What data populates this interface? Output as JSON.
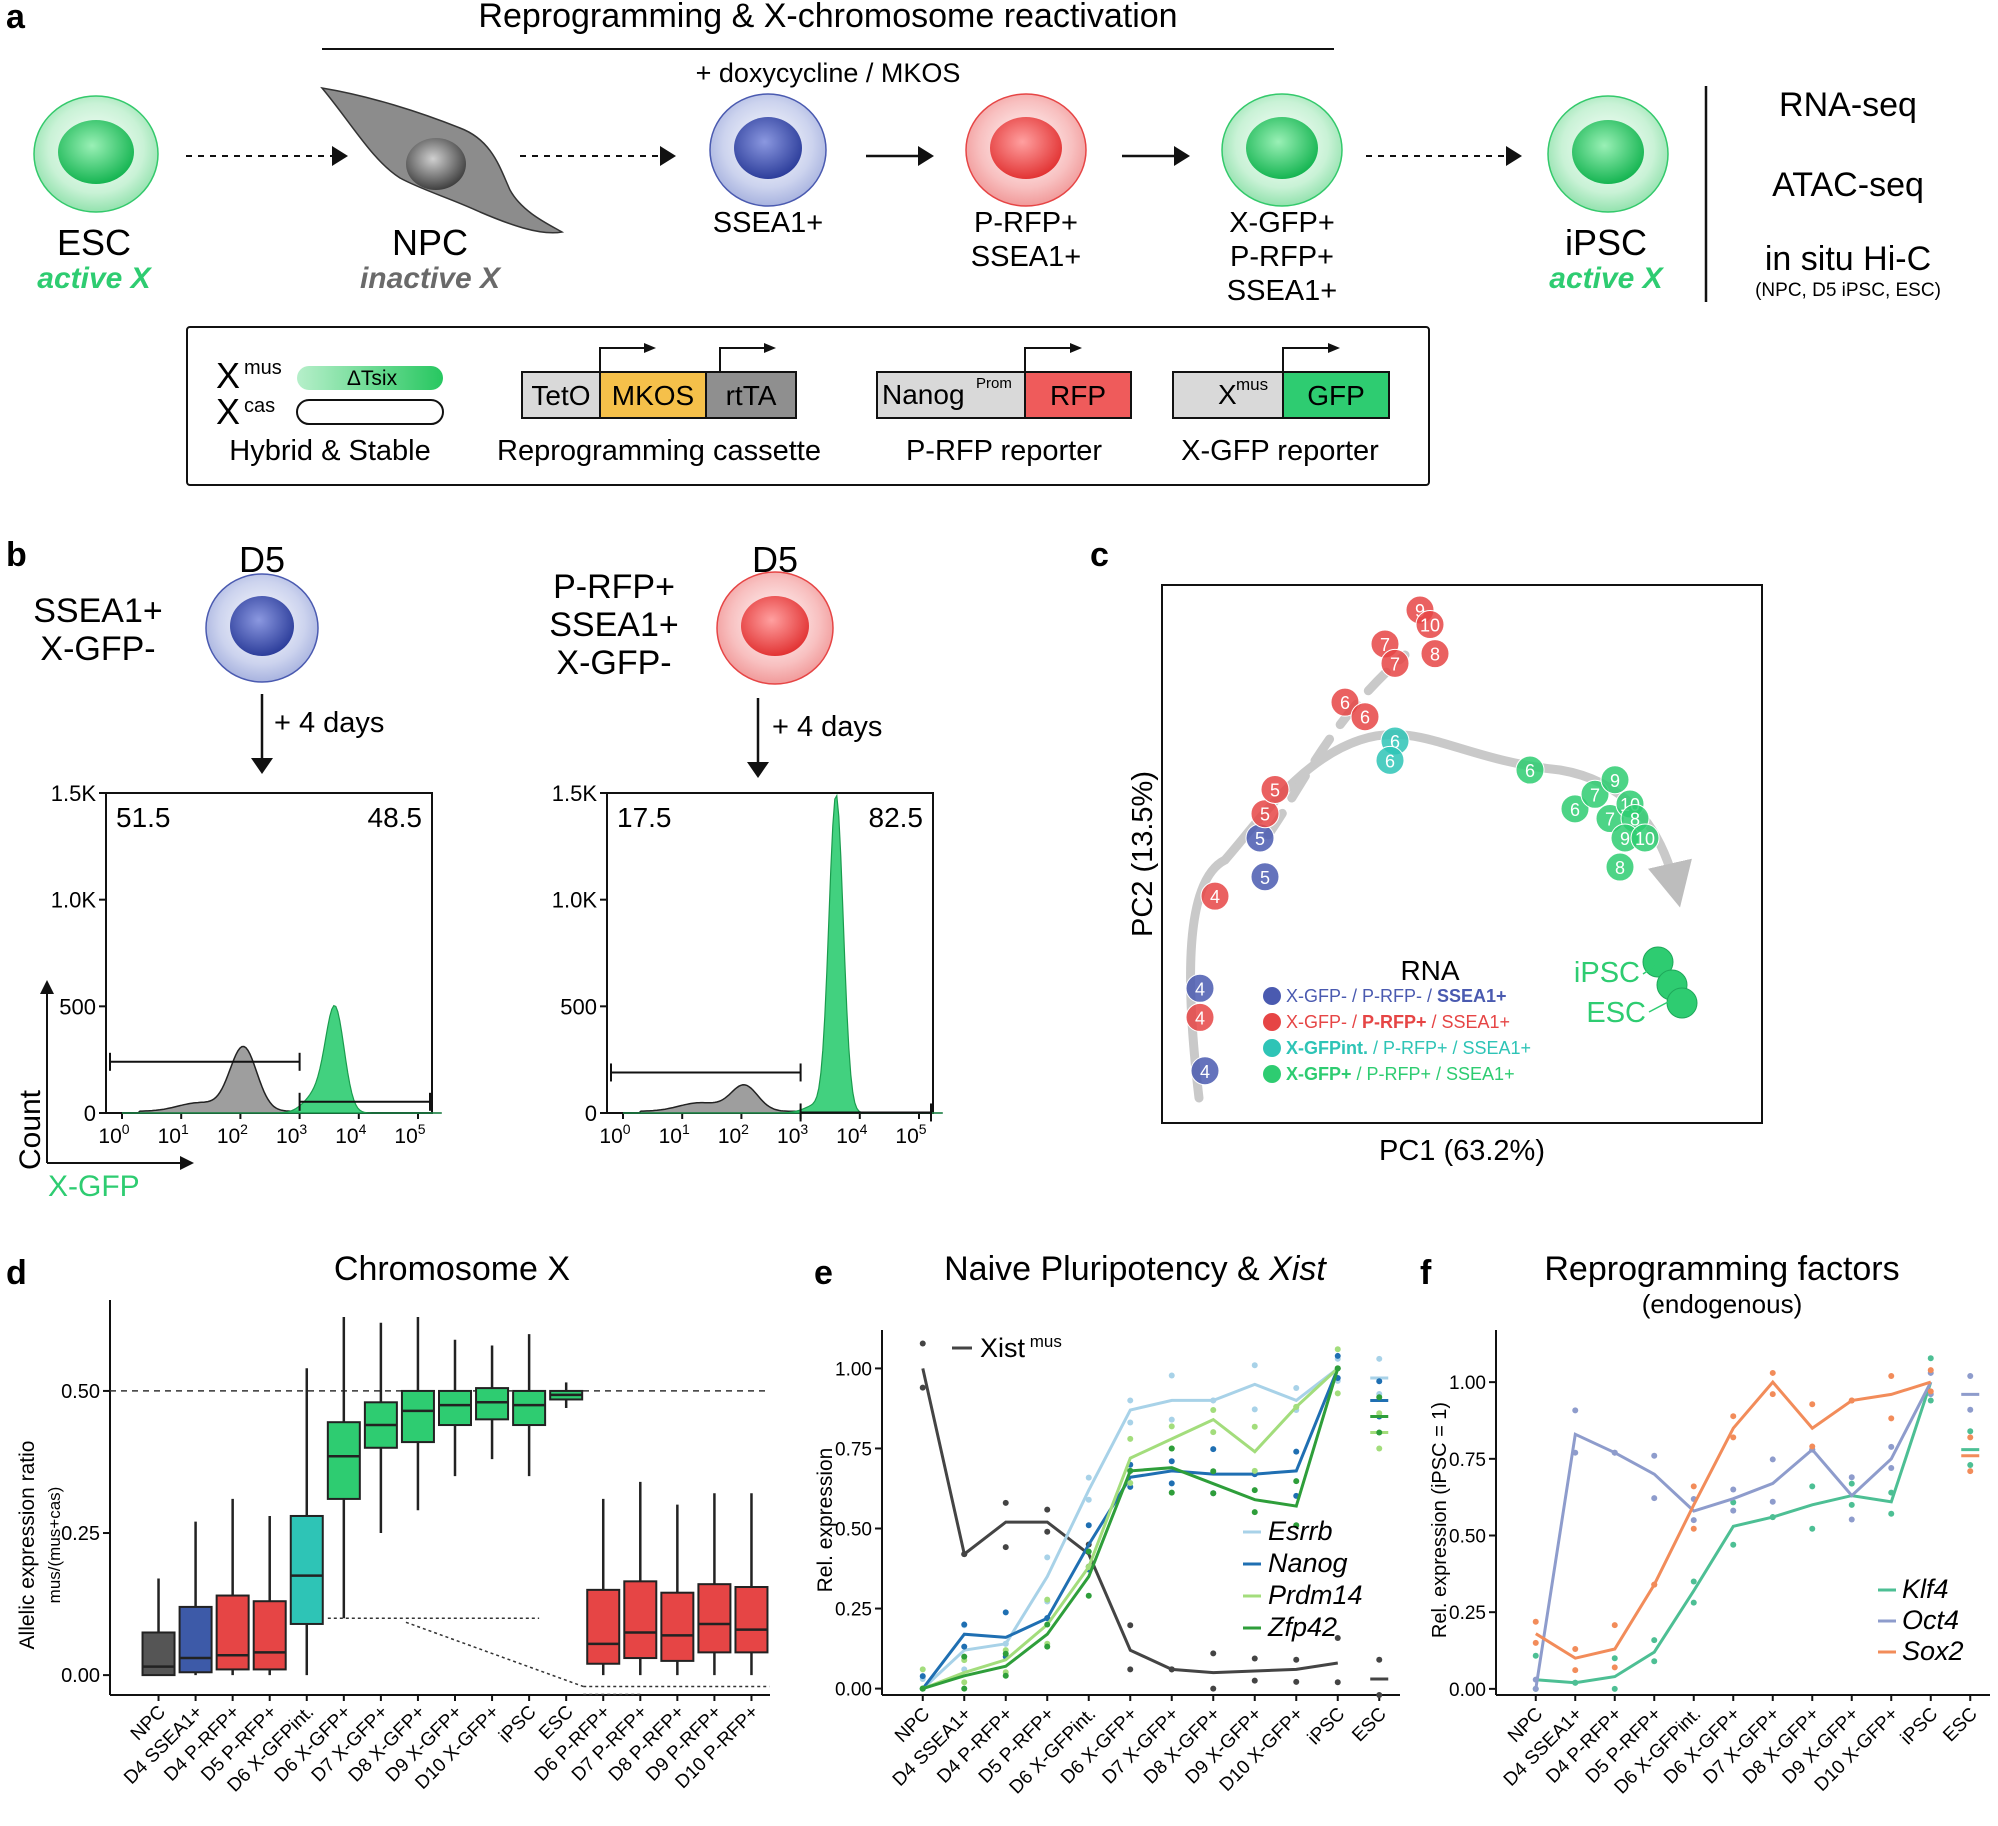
{
  "panel_a": {
    "label": "a",
    "banner": "Reprogramming & X-chromosome reactivation",
    "dox": "+ doxycycline / MKOS",
    "cells": {
      "esc": {
        "name": "ESC",
        "sub": "active X"
      },
      "npc": {
        "name": "NPC",
        "sub": "inactive X"
      },
      "ssea": {
        "name": "SSEA1+"
      },
      "prfp": {
        "l1": "P-RFP+",
        "l2": "SSEA1+"
      },
      "xgfp": {
        "l1": "X-GFP+",
        "l2": "P-RFP+",
        "l3": "SSEA1+"
      },
      "ipsc": {
        "name": "iPSC",
        "sub": "active X"
      }
    },
    "assays": {
      "rna": "RNA-seq",
      "atac": "ATAC-seq",
      "hic": "in situ Hi-C",
      "hic_note": "(NPC, D5 iPSC, ESC)"
    },
    "constructs": {
      "hybrid": {
        "x": "X",
        "mus": "mus",
        "cas": "cas",
        "delta": "ΔTsix",
        "caption": "Hybrid & Stable"
      },
      "cassette": {
        "teto": "TetO",
        "mkos": "MKOS",
        "rtta": "rtTA",
        "caption": "Reprogramming cassette"
      },
      "prfp": {
        "nanog": "Nanog",
        "prom": "Prom",
        "rfp": "RFP",
        "caption": "P-RFP reporter"
      },
      "xgfp": {
        "x": "X",
        "mus": "mus",
        "gfp": "GFP",
        "caption": "X-GFP reporter"
      }
    },
    "colors": {
      "green": "#2ecc71",
      "blue": "#4a5ab0",
      "red": "#e64545",
      "gray": "#7a7a7a",
      "mkos": "#f5c04a"
    }
  },
  "panel_b": {
    "label": "b",
    "left": {
      "day": "D5",
      "l1": "SSEA1+",
      "l2": "X-GFP-",
      "arrow": "+ 4 days",
      "neg": "51.5",
      "pos": "48.5"
    },
    "right": {
      "day": "D5",
      "l1": "P-RFP+",
      "l2": "SSEA1+",
      "l3": "X-GFP-",
      "arrow": "+ 4 days",
      "neg": "17.5",
      "pos": "82.5"
    },
    "yticks": [
      "1.5K",
      "1.0K",
      "500",
      "0"
    ],
    "xticks": [
      {
        "b": "10",
        "e": "0"
      },
      {
        "b": "10",
        "e": "1"
      },
      {
        "b": "10",
        "e": "2"
      },
      {
        "b": "10",
        "e": "3"
      },
      {
        "b": "10",
        "e": "4"
      },
      {
        "b": "10",
        "e": "5"
      }
    ],
    "ylabel": "Count",
    "xlabel": "X-GFP"
  },
  "panel_c": {
    "label": "c",
    "xlabel": "PC1 (63.2%)",
    "ylabel": "PC2 (13.5%)",
    "legend_title": "RNA",
    "legend": [
      {
        "a": "X-GFP- / P-RFP- / ",
        "b": "SSEA1+",
        "color": "#4a5ab0"
      },
      {
        "a": "X-GFP- / ",
        "b": "P-RFP+",
        "c": " / SSEA1+",
        "color": "#e64545"
      },
      {
        "a": "X-GFPint.",
        "b": " / P-RFP+ / SSEA1+",
        "color": "#2ec4b6"
      },
      {
        "a": "X-GFP+",
        "b": " / P-RFP+ / SSEA1+",
        "color": "#2ecc71"
      }
    ],
    "ipsc": "iPSC",
    "esc": "ESC",
    "points": [
      {
        "d": "4",
        "g": "b",
        "x": 0.05,
        "y": 0.05
      },
      {
        "d": "4",
        "g": "r",
        "x": 0.04,
        "y": 0.16
      },
      {
        "d": "4",
        "g": "b",
        "x": 0.04,
        "y": 0.22
      },
      {
        "d": "4",
        "g": "r",
        "x": 0.07,
        "y": 0.41
      },
      {
        "d": "5",
        "g": "b",
        "x": 0.17,
        "y": 0.45
      },
      {
        "d": "5",
        "g": "b",
        "x": 0.16,
        "y": 0.53
      },
      {
        "d": "5",
        "g": "r",
        "x": 0.17,
        "y": 0.58
      },
      {
        "d": "5",
        "g": "r",
        "x": 0.19,
        "y": 0.63
      },
      {
        "d": "6",
        "g": "r",
        "x": 0.33,
        "y": 0.81
      },
      {
        "d": "6",
        "g": "r",
        "x": 0.37,
        "y": 0.78
      },
      {
        "d": "7",
        "g": "r",
        "x": 0.41,
        "y": 0.93
      },
      {
        "d": "7",
        "g": "r",
        "x": 0.43,
        "y": 0.89
      },
      {
        "d": "8",
        "g": "r",
        "x": 0.51,
        "y": 0.91
      },
      {
        "d": "9",
        "g": "r",
        "x": 0.48,
        "y": 1.0
      },
      {
        "d": "10",
        "g": "r",
        "x": 0.5,
        "y": 0.97
      },
      {
        "d": "6",
        "g": "c",
        "x": 0.43,
        "y": 0.73
      },
      {
        "d": "6",
        "g": "c",
        "x": 0.42,
        "y": 0.69
      },
      {
        "d": "6",
        "g": "g",
        "x": 0.7,
        "y": 0.67
      },
      {
        "d": "6",
        "g": "g",
        "x": 0.79,
        "y": 0.59
      },
      {
        "d": "7",
        "g": "g",
        "x": 0.83,
        "y": 0.62
      },
      {
        "d": "7",
        "g": "g",
        "x": 0.86,
        "y": 0.57
      },
      {
        "d": "9",
        "g": "g",
        "x": 0.87,
        "y": 0.65
      },
      {
        "d": "10",
        "g": "g",
        "x": 0.9,
        "y": 0.6
      },
      {
        "d": "8",
        "g": "g",
        "x": 0.91,
        "y": 0.57
      },
      {
        "d": "9",
        "g": "g",
        "x": 0.89,
        "y": 0.53
      },
      {
        "d": "10",
        "g": "g",
        "x": 0.93,
        "y": 0.53
      },
      {
        "d": "8",
        "g": "g",
        "x": 0.88,
        "y": 0.47
      }
    ]
  },
  "panel_d": {
    "label": "d",
    "title": "Chromosome X",
    "ylabel": "Allelic expression ratio",
    "ylabel2": "mus/(mus+cas)",
    "yticks": [
      "0.00",
      "0.25",
      "0.50"
    ],
    "categories": [
      "NPC",
      "D4 SSEA1+",
      "D4 P-RFP+",
      "D5 P-RFP+",
      "D6 X-GFPint.",
      "D6 X-GFP+",
      "D7 X-GFP+",
      "D8 X-GFP+",
      "D9 X-GFP+",
      "D10 X-GFP+",
      "iPSC",
      "ESC",
      "D6 P-RFP+",
      "D7 P-RFP+",
      "D8 P-RFP+",
      "D9 P-RFP+",
      "D10 P-RFP+"
    ],
    "boxes": [
      {
        "c": "#555555",
        "wl": 0.0,
        "q1": 0.0,
        "med": 0.015,
        "q3": 0.075,
        "wh": 0.17
      },
      {
        "c": "#3d5aa8",
        "wl": 0.0,
        "q1": 0.005,
        "med": 0.03,
        "q3": 0.12,
        "wh": 0.27
      },
      {
        "c": "#e64545",
        "wl": 0.0,
        "q1": 0.01,
        "med": 0.035,
        "q3": 0.14,
        "wh": 0.31
      },
      {
        "c": "#e64545",
        "wl": 0.0,
        "q1": 0.01,
        "med": 0.04,
        "q3": 0.13,
        "wh": 0.28
      },
      {
        "c": "#2ec4b6",
        "wl": 0.0,
        "q1": 0.09,
        "med": 0.175,
        "q3": 0.28,
        "wh": 0.54
      },
      {
        "c": "#2ecc71",
        "wl": 0.1,
        "q1": 0.31,
        "med": 0.385,
        "q3": 0.445,
        "wh": 0.63
      },
      {
        "c": "#2ecc71",
        "wl": 0.25,
        "q1": 0.4,
        "med": 0.44,
        "q3": 0.48,
        "wh": 0.62
      },
      {
        "c": "#2ecc71",
        "wl": 0.29,
        "q1": 0.41,
        "med": 0.465,
        "q3": 0.5,
        "wh": 0.63
      },
      {
        "c": "#2ecc71",
        "wl": 0.35,
        "q1": 0.44,
        "med": 0.475,
        "q3": 0.5,
        "wh": 0.59
      },
      {
        "c": "#2ecc71",
        "wl": 0.38,
        "q1": 0.45,
        "med": 0.48,
        "q3": 0.505,
        "wh": 0.58
      },
      {
        "c": "#2ecc71",
        "wl": 0.35,
        "q1": 0.44,
        "med": 0.475,
        "q3": 0.5,
        "wh": 0.6
      },
      {
        "c": "#2ecc71",
        "wl": 0.47,
        "q1": 0.485,
        "med": 0.493,
        "q3": 0.5,
        "wh": 0.515
      },
      {
        "c": "#e64545",
        "wl": 0.0,
        "q1": 0.02,
        "med": 0.055,
        "q3": 0.15,
        "wh": 0.31
      },
      {
        "c": "#e64545",
        "wl": 0.0,
        "q1": 0.03,
        "med": 0.075,
        "q3": 0.165,
        "wh": 0.34
      },
      {
        "c": "#e64545",
        "wl": 0.0,
        "q1": 0.025,
        "med": 0.07,
        "q3": 0.145,
        "wh": 0.3
      },
      {
        "c": "#e64545",
        "wl": 0.0,
        "q1": 0.04,
        "med": 0.09,
        "q3": 0.16,
        "wh": 0.32
      },
      {
        "c": "#e64545",
        "wl": 0.0,
        "q1": 0.04,
        "med": 0.08,
        "q3": 0.155,
        "wh": 0.32
      }
    ]
  },
  "panel_e": {
    "label": "e",
    "title": "Naive Pluripotency & ",
    "title_it": "Xist",
    "ylabel": "Rel. expression",
    "yticks": [
      "0.00",
      "0.25",
      "0.50",
      "0.75",
      "1.00"
    ],
    "xist_label": "Xist",
    "xist_sup": "mus",
    "categories": [
      "NPC",
      "D4 SSEA1+",
      "D4 P-RFP+",
      "D5 P-RFP+",
      "D6 X-GFPint.",
      "D6 X-GFP+",
      "D7 X-GFP+",
      "D8 X-GFP+",
      "D9 X-GFP+",
      "D10 X-GFP+",
      "iPSC",
      "ESC"
    ],
    "series": [
      {
        "name": "Xist",
        "color": "#444444",
        "values": [
          1.0,
          0.42,
          0.52,
          0.52,
          0.42,
          0.12,
          0.06,
          0.05,
          0.055,
          0.06,
          0.08
        ],
        "esc": 0.03
      },
      {
        "name": "Esrrb",
        "color": "#a8d2e8",
        "values": [
          0.0,
          0.12,
          0.14,
          0.35,
          0.62,
          0.87,
          0.9,
          0.9,
          0.95,
          0.9,
          1.0
        ],
        "esc": 0.97
      },
      {
        "name": "Nanog",
        "color": "#1f6fb2",
        "values": [
          0.0,
          0.17,
          0.16,
          0.22,
          0.45,
          0.66,
          0.68,
          0.67,
          0.67,
          0.68,
          1.0
        ],
        "esc": 0.9
      },
      {
        "name": "Prdm14",
        "color": "#a3dd7c",
        "values": [
          0.0,
          0.05,
          0.09,
          0.2,
          0.38,
          0.72,
          0.78,
          0.84,
          0.74,
          0.88,
          1.0
        ],
        "esc": 0.8
      },
      {
        "name": "Zfp42",
        "color": "#2e9e3a",
        "values": [
          0.0,
          0.04,
          0.07,
          0.17,
          0.35,
          0.68,
          0.69,
          0.64,
          0.59,
          0.57,
          1.0
        ],
        "esc": 0.85
      }
    ]
  },
  "panel_f": {
    "label": "f",
    "title": "Reprogramming factors",
    "subtitle": "(endogenous)",
    "ylabel": "Rel. expression (iPSC = 1)",
    "yticks": [
      "0.00",
      "0.25",
      "0.50",
      "0.75",
      "1.00"
    ],
    "categories": [
      "NPC",
      "D4 SSEA1+",
      "D4 P-RFP+",
      "D5 P-RFP+",
      "D6 X-GFPint.",
      "D6 X-GFP+",
      "D7 X-GFP+",
      "D8 X-GFP+",
      "D9 X-GFP+",
      "D10 X-GFP+",
      "iPSC",
      "ESC"
    ],
    "series": [
      {
        "name": "Klf4",
        "color": "#4dbf94",
        "values": [
          0.03,
          0.02,
          0.04,
          0.12,
          0.32,
          0.53,
          0.56,
          0.6,
          0.63,
          0.61,
          1.0
        ],
        "esc": 0.78
      },
      {
        "name": "Oct4",
        "color": "#8e9ccc",
        "values": [
          0.0,
          0.83,
          0.77,
          0.7,
          0.58,
          0.62,
          0.67,
          0.78,
          0.63,
          0.75,
          1.0
        ],
        "esc": 0.96
      },
      {
        "name": "Sox2",
        "color": "#f28c5a",
        "values": [
          0.18,
          0.1,
          0.13,
          0.34,
          0.6,
          0.85,
          1.0,
          0.85,
          0.94,
          0.96,
          1.0
        ],
        "esc": 0.76
      }
    ]
  }
}
